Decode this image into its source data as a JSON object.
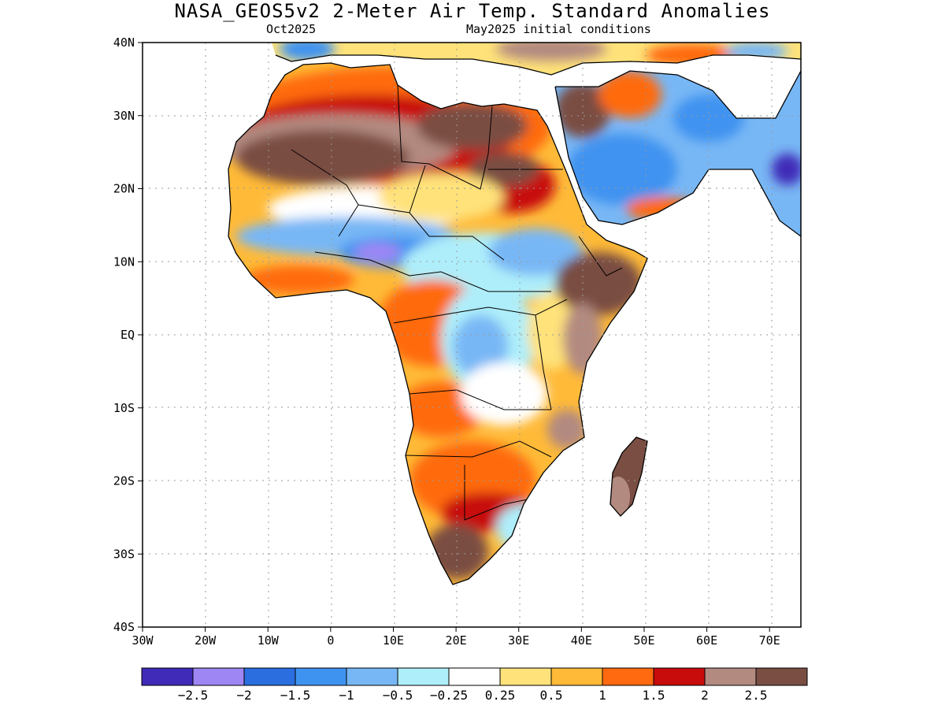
{
  "title": "NASA_GEOS5v2 2-Meter Air Temp. Standard Anomalies",
  "subtitle_left": "Oct2025",
  "subtitle_right": "May2025 initial conditions",
  "map": {
    "lon_range": [
      -30,
      75
    ],
    "lat_range": [
      -40,
      40
    ],
    "x_ticks": [
      "30W",
      "20W",
      "10W",
      "0",
      "10E",
      "20E",
      "30E",
      "40E",
      "50E",
      "60E",
      "70E"
    ],
    "y_ticks": [
      "40N",
      "30N",
      "20N",
      "10N",
      "EQ",
      "10S",
      "20S",
      "30S",
      "40S"
    ],
    "grid": "dotted"
  },
  "colorbar": {
    "colors": [
      "#3f2bb8",
      "#9e86f5",
      "#2a6ee0",
      "#3f93f0",
      "#78b7f5",
      "#aeeefa",
      "#ffffff",
      "#ffe27a",
      "#ffba38",
      "#ff6a10",
      "#c80b0b",
      "#b38a80",
      "#7a4e43"
    ],
    "labels": [
      "−2.5",
      "−2",
      "−1.5",
      "−1",
      "−0.5",
      "−0.25",
      "0.25",
      "0.5",
      "1",
      "1.5",
      "2",
      "2.5"
    ]
  }
}
